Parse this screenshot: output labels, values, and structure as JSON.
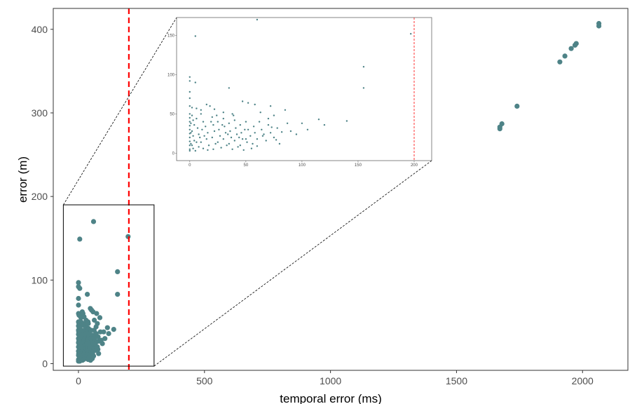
{
  "chart_data": {
    "type": "scatter",
    "title": "",
    "xlabel": "temporal error (ms)",
    "ylabel": "error (m)",
    "xlim": [
      -100,
      2180
    ],
    "ylim": [
      -8,
      425
    ],
    "x_ticks": [
      0,
      500,
      1000,
      1500,
      2000
    ],
    "y_ticks": [
      0,
      100,
      200,
      300,
      400
    ],
    "grid": false,
    "legend": "none",
    "colors": {
      "points": "#4e8387",
      "threshold_line": "#ff0000",
      "frame": "#333333"
    },
    "threshold": {
      "x": 200,
      "style": "dashed"
    },
    "zoom_box": {
      "xlim": [
        -60,
        300
      ],
      "ylim": [
        -3,
        190
      ]
    },
    "inset": {
      "xlim": [
        -8,
        210
      ],
      "ylim": [
        -5,
        170
      ],
      "x_ticks": [
        0,
        50,
        100,
        150,
        200
      ],
      "y_ticks": [
        0,
        50,
        100,
        150
      ]
    },
    "points": [
      [
        2065,
        407
      ],
      [
        2065,
        404
      ],
      [
        1975,
        383
      ],
      [
        1970,
        381
      ],
      [
        1955,
        377
      ],
      [
        1930,
        368
      ],
      [
        1910,
        361
      ],
      [
        1740,
        308
      ],
      [
        1680,
        287
      ],
      [
        1672,
        283
      ],
      [
        1672,
        281
      ],
      [
        60,
        170
      ],
      [
        197,
        152
      ],
      [
        5,
        149
      ],
      [
        155,
        110
      ],
      [
        155,
        83
      ],
      [
        0,
        97
      ],
      [
        0,
        92
      ],
      [
        5,
        90
      ],
      [
        35,
        83
      ],
      [
        0,
        78
      ],
      [
        0,
        70
      ],
      [
        0,
        60
      ],
      [
        2,
        58
      ],
      [
        6,
        57
      ],
      [
        10,
        55
      ],
      [
        15,
        62
      ],
      [
        18,
        60
      ],
      [
        22,
        56
      ],
      [
        47,
        66
      ],
      [
        52,
        64
      ],
      [
        58,
        62
      ],
      [
        30,
        52
      ],
      [
        38,
        50
      ],
      [
        63,
        52
      ],
      [
        72,
        60
      ],
      [
        75,
        48
      ],
      [
        85,
        55
      ],
      [
        87,
        38
      ],
      [
        100,
        38
      ],
      [
        115,
        43
      ],
      [
        140,
        41
      ],
      [
        70,
        36
      ],
      [
        73,
        33
      ],
      [
        82,
        27
      ],
      [
        60,
        9
      ],
      [
        50,
        18
      ],
      [
        65,
        22
      ],
      [
        77,
        17
      ],
      [
        0,
        50
      ],
      [
        0,
        45
      ],
      [
        0,
        40
      ],
      [
        0,
        35
      ],
      [
        0,
        30
      ],
      [
        0,
        25
      ],
      [
        0,
        20
      ],
      [
        0,
        15
      ],
      [
        0,
        10
      ],
      [
        0,
        5
      ],
      [
        0,
        3
      ],
      [
        2,
        48
      ],
      [
        3,
        42
      ],
      [
        4,
        36
      ],
      [
        2,
        28
      ],
      [
        3,
        22
      ],
      [
        4,
        16
      ],
      [
        2,
        10
      ],
      [
        3,
        6
      ],
      [
        5,
        3
      ],
      [
        6,
        44
      ],
      [
        7,
        32
      ],
      [
        8,
        24
      ],
      [
        6,
        14
      ],
      [
        8,
        8
      ],
      [
        10,
        50
      ],
      [
        12,
        40
      ],
      [
        11,
        30
      ],
      [
        13,
        22
      ],
      [
        10,
        14
      ],
      [
        12,
        6
      ],
      [
        14,
        34
      ],
      [
        16,
        26
      ],
      [
        15,
        18
      ],
      [
        17,
        10
      ],
      [
        16,
        4
      ],
      [
        20,
        46
      ],
      [
        21,
        36
      ],
      [
        22,
        28
      ],
      [
        20,
        20
      ],
      [
        23,
        12
      ],
      [
        21,
        5
      ],
      [
        25,
        40
      ],
      [
        26,
        30
      ],
      [
        27,
        22
      ],
      [
        25,
        14
      ],
      [
        28,
        7
      ],
      [
        30,
        44
      ],
      [
        31,
        34
      ],
      [
        32,
        26
      ],
      [
        30,
        18
      ],
      [
        33,
        10
      ],
      [
        35,
        38
      ],
      [
        36,
        28
      ],
      [
        37,
        20
      ],
      [
        35,
        12
      ],
      [
        38,
        5
      ],
      [
        40,
        42
      ],
      [
        41,
        32
      ],
      [
        42,
        24
      ],
      [
        40,
        16
      ],
      [
        43,
        8
      ],
      [
        45,
        36
      ],
      [
        46,
        26
      ],
      [
        47,
        18
      ],
      [
        45,
        10
      ],
      [
        48,
        4
      ],
      [
        50,
        40
      ],
      [
        52,
        30
      ],
      [
        54,
        22
      ],
      [
        51,
        14
      ],
      [
        55,
        6
      ],
      [
        57,
        34
      ],
      [
        58,
        26
      ],
      [
        60,
        18
      ],
      [
        56,
        12
      ],
      [
        62,
        40
      ],
      [
        64,
        30
      ],
      [
        66,
        24
      ],
      [
        68,
        16
      ],
      [
        70,
        44
      ],
      [
        72,
        26
      ],
      [
        75,
        20
      ],
      [
        78,
        32
      ],
      [
        80,
        12
      ],
      [
        90,
        28
      ],
      [
        95,
        24
      ],
      [
        105,
        30
      ],
      [
        120,
        36
      ],
      [
        1,
        38
      ],
      [
        1,
        26
      ],
      [
        1,
        12
      ],
      [
        9,
        20
      ],
      [
        19,
        40
      ],
      [
        24,
        48
      ],
      [
        29,
        36
      ],
      [
        34,
        24
      ],
      [
        39,
        48
      ],
      [
        44,
        20
      ],
      [
        49,
        30
      ]
    ]
  }
}
